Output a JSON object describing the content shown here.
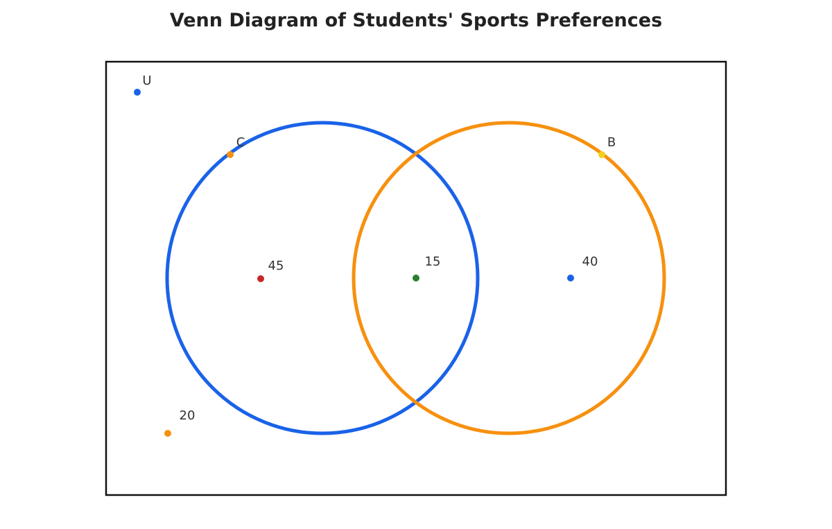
{
  "title": "Venn Diagram of Students' Sports Preferences",
  "universe": {
    "label": "U",
    "dot_color": "#1a62e8"
  },
  "sets": [
    {
      "label": "C",
      "color": "#1a62e8",
      "dot_color": "#f7900f"
    },
    {
      "label": "B",
      "color": "#f7900f",
      "dot_color": "#f2d01e"
    }
  ],
  "regions": [
    {
      "value": 45,
      "dot_color": "#c62828"
    },
    {
      "value": 15,
      "dot_color": "#2e7d32"
    },
    {
      "value": 40,
      "dot_color": "#1a62e8"
    },
    {
      "value": 20,
      "dot_color": "#f7900f"
    }
  ]
}
